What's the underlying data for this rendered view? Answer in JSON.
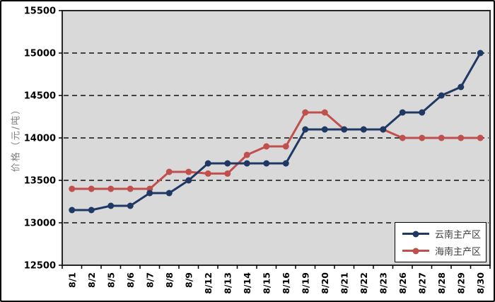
{
  "chart_data": {
    "type": "line",
    "title": "",
    "ylabel": "价格（元/吨）",
    "categories": [
      "8/1",
      "8/2",
      "8/5",
      "8/6",
      "8/7",
      "8/8",
      "8/9",
      "8/12",
      "8/13",
      "8/14",
      "8/15",
      "8/16",
      "8/19",
      "8/20",
      "8/21",
      "8/22",
      "8/23",
      "8/26",
      "8/27",
      "8/28",
      "8/29",
      "8/30"
    ],
    "series": [
      {
        "name": "云南主产区",
        "color": "#1F3864",
        "values": [
          13150,
          13150,
          13200,
          13200,
          13350,
          13350,
          13500,
          13700,
          13700,
          13700,
          13700,
          13700,
          14100,
          14100,
          14100,
          14100,
          14100,
          14300,
          14300,
          14500,
          14600,
          15000
        ]
      },
      {
        "name": "海南主产区",
        "color": "#C0504D",
        "values": [
          13400,
          13400,
          13400,
          13400,
          13400,
          13600,
          13600,
          13580,
          13580,
          13800,
          13900,
          13900,
          14300,
          14300,
          14100,
          14100,
          14100,
          14000,
          14000,
          14000,
          14000,
          14000
        ]
      }
    ],
    "ylim": [
      12500,
      15500
    ],
    "yticks": [
      12500,
      13000,
      13500,
      14000,
      14500,
      15000,
      15500
    ],
    "grid": "horizontal-dashed",
    "legend_position": "bottom-right",
    "plot_background": "#D9D9D9",
    "marker": "circle"
  }
}
